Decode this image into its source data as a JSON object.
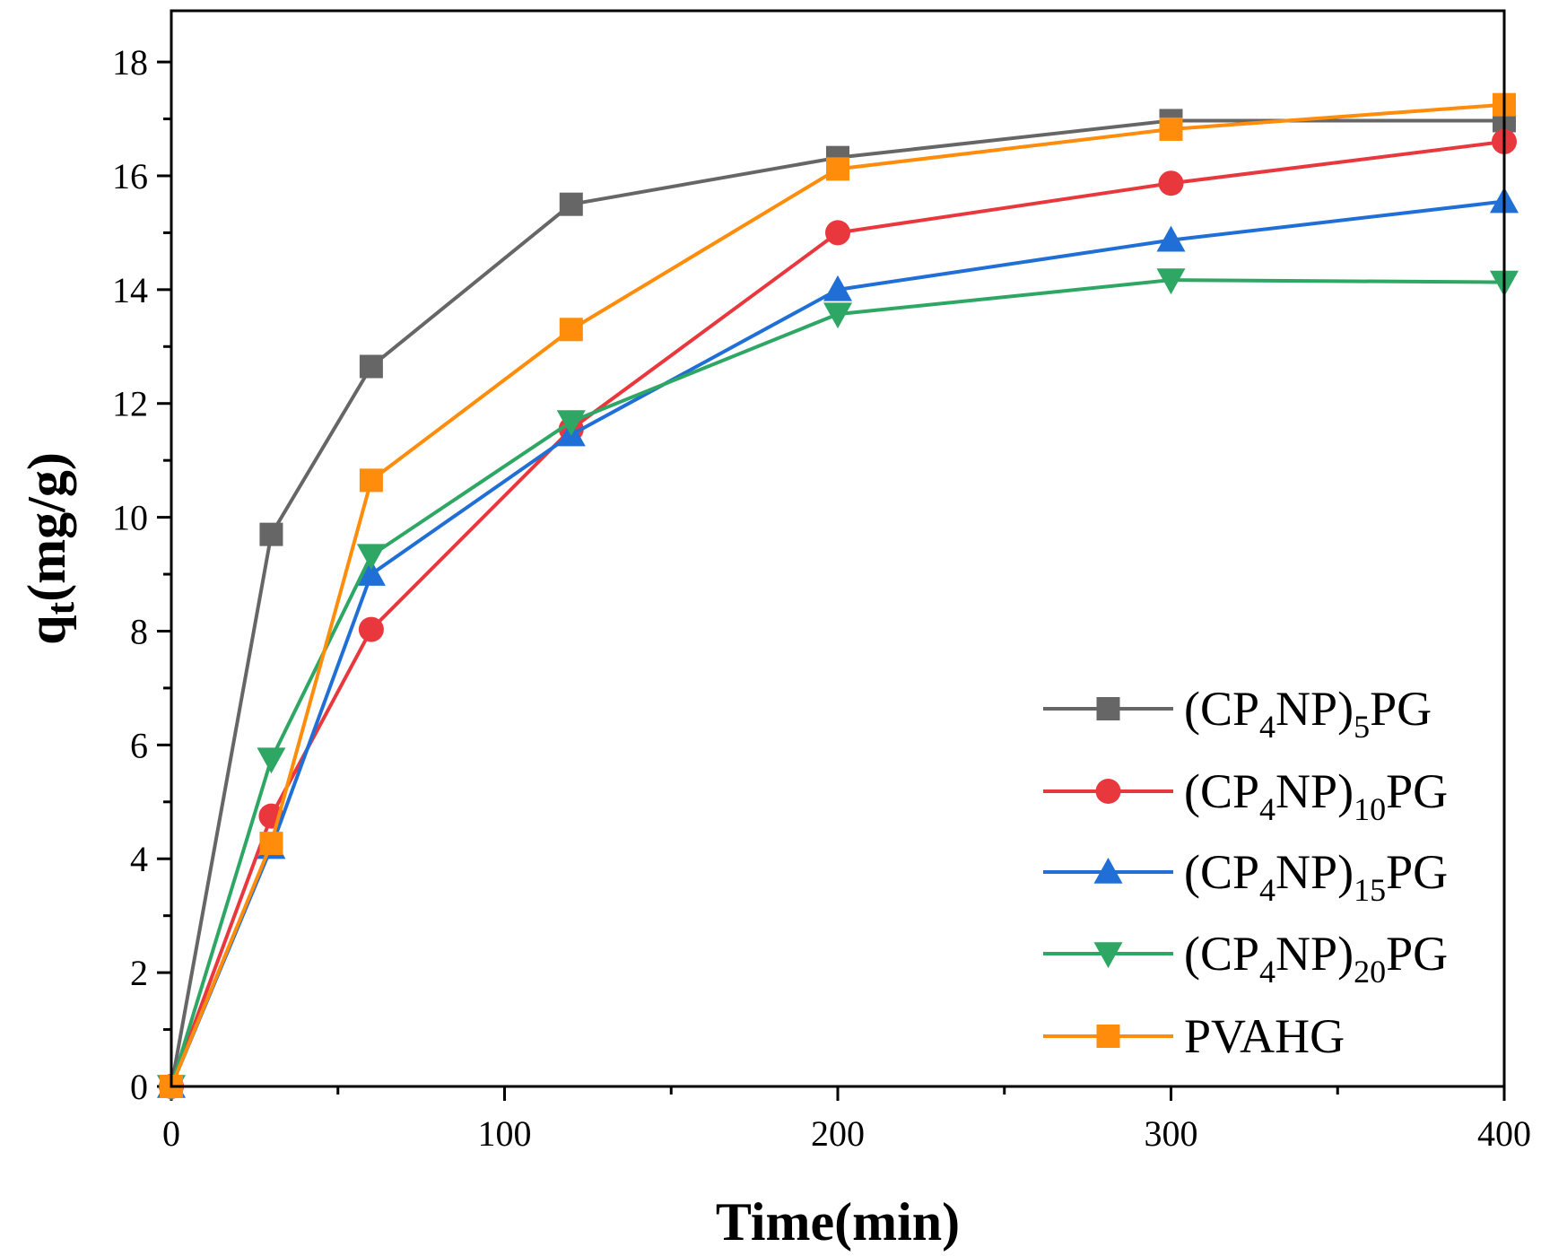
{
  "chart_data": {
    "type": "line",
    "title": "",
    "xlabel": "Time(min)",
    "ylabel_main": "q",
    "ylabel_sub": "t",
    "ylabel_unit": "(mg/g)",
    "xlim": [
      0,
      400
    ],
    "ylim": [
      0,
      18.9
    ],
    "x_ticks": [
      0,
      100,
      200,
      300,
      400
    ],
    "x_tick_labels": [
      "0",
      "100",
      "200",
      "300",
      "400"
    ],
    "x_minor_ticks": [
      50,
      150,
      250,
      350
    ],
    "y_ticks": [
      0,
      2,
      4,
      6,
      8,
      10,
      12,
      14,
      16,
      18
    ],
    "y_tick_labels": [
      "0",
      "2",
      "4",
      "6",
      "8",
      "10",
      "12",
      "14",
      "16",
      "18"
    ],
    "y_minor_ticks": [
      1,
      3,
      5,
      7,
      9,
      11,
      13,
      15,
      17
    ],
    "grid": false,
    "legend_position": "bottom-right",
    "x": [
      0,
      30,
      60,
      120,
      200,
      300,
      400
    ],
    "series": [
      {
        "name": "(CP4NP)5PG",
        "legend_parts": [
          [
            "(CP",
            "n"
          ],
          [
            "4",
            "sub"
          ],
          [
            "NP)",
            "n"
          ],
          [
            "5",
            "sub"
          ],
          [
            "PG",
            "n"
          ]
        ],
        "marker": "square",
        "color": "#666666",
        "values": [
          0,
          9.7,
          12.65,
          15.5,
          16.32,
          16.97,
          16.97
        ]
      },
      {
        "name": "(CP4NP)10PG",
        "legend_parts": [
          [
            "(CP",
            "n"
          ],
          [
            "4",
            "sub"
          ],
          [
            "NP)",
            "n"
          ],
          [
            "10",
            "sub"
          ],
          [
            "PG",
            "n"
          ]
        ],
        "marker": "circle",
        "color": "#e8383d",
        "values": [
          0,
          4.75,
          8.03,
          11.55,
          15.0,
          15.87,
          16.6
        ]
      },
      {
        "name": "(CP4NP)15PG",
        "legend_parts": [
          [
            "(CP",
            "n"
          ],
          [
            "4",
            "sub"
          ],
          [
            "NP)",
            "n"
          ],
          [
            "15",
            "sub"
          ],
          [
            "PG",
            "n"
          ]
        ],
        "marker": "triangle-up",
        "color": "#1f6fd6",
        "values": [
          0,
          4.2,
          9.0,
          11.45,
          14.0,
          14.87,
          15.55
        ]
      },
      {
        "name": "(CP4NP)20PG",
        "legend_parts": [
          [
            "(CP",
            "n"
          ],
          [
            "4",
            "sub"
          ],
          [
            "NP)",
            "n"
          ],
          [
            "20",
            "sub"
          ],
          [
            "PG",
            "n"
          ]
        ],
        "marker": "triangle-down",
        "color": "#2ea664",
        "values": [
          0,
          5.75,
          9.33,
          11.68,
          13.57,
          14.17,
          14.13
        ]
      },
      {
        "name": "PVAHG",
        "legend_parts": [
          [
            "PVAHG",
            "n"
          ]
        ],
        "marker": "square",
        "color": "#ff8c0a",
        "values": [
          0,
          4.27,
          10.65,
          13.3,
          16.12,
          16.82,
          17.25
        ]
      }
    ]
  }
}
